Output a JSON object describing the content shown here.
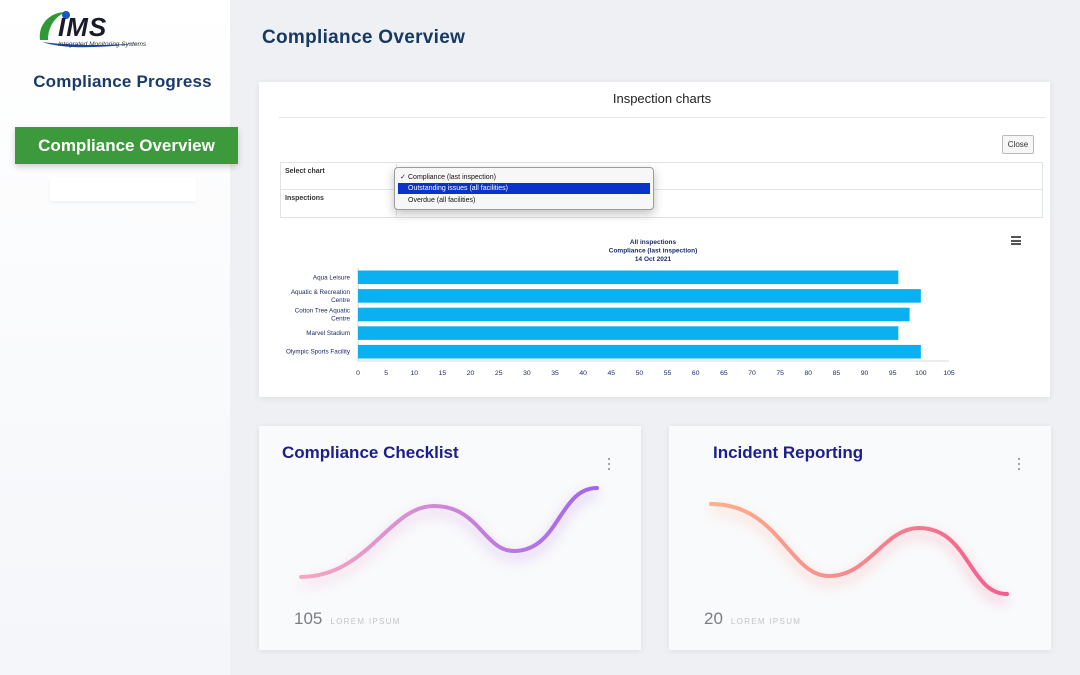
{
  "sidebar": {
    "logo": {
      "text": "IMS",
      "tagline": "Integrated Monitoring Systems"
    },
    "progress_label": "Compliance Progress",
    "overview_label": "Compliance Overview"
  },
  "page_title": "Compliance Overview",
  "inspection_panel": {
    "heading": "Inspection charts",
    "close_label": "Close",
    "select_chart_label": "Select chart",
    "inspections_label": "Inspections",
    "dropdown": {
      "options": [
        "Compliance (last inspection)",
        "Outstanding issues (all facilities)",
        "Overdue (all facilities)"
      ],
      "checked_index": 0,
      "highlighted_index": 1
    },
    "menu_icon": "hamburger-icon"
  },
  "chart_data": {
    "type": "bar",
    "orientation": "horizontal",
    "title": [
      "All inspections",
      "Compliance (last inspection)",
      "14 Oct 2021"
    ],
    "categories": [
      [
        "Aqua Leisure"
      ],
      [
        "Aquatic & Recreation",
        "Centre"
      ],
      [
        "Cotton Tree Aquatic",
        "Centre"
      ],
      [
        "Marvel Stadium"
      ],
      [
        "Olympic Sports Facility"
      ]
    ],
    "values": [
      96,
      100,
      98,
      96,
      100
    ],
    "xlim": [
      0,
      105
    ],
    "xticks": [
      0,
      5,
      10,
      15,
      20,
      25,
      30,
      35,
      40,
      45,
      50,
      55,
      60,
      65,
      70,
      75,
      80,
      85,
      90,
      95,
      100,
      105
    ],
    "xlabel": "",
    "ylabel": "",
    "bar_color": "#0ab0f0",
    "grid": false,
    "legend": "none"
  },
  "cards": [
    {
      "title": "Compliance Checklist",
      "number": "105",
      "sublabel": "LOREM IPSUM",
      "menu_icon": "vertical-dots-icon",
      "gradient": [
        "#f7a7c0",
        "#a066ee"
      ]
    },
    {
      "title": "Incident Reporting",
      "number": "20",
      "sublabel": "LOREM IPSUM",
      "menu_icon": "vertical-dots-icon",
      "gradient": [
        "#fdb08b",
        "#f15e8f"
      ]
    }
  ]
}
